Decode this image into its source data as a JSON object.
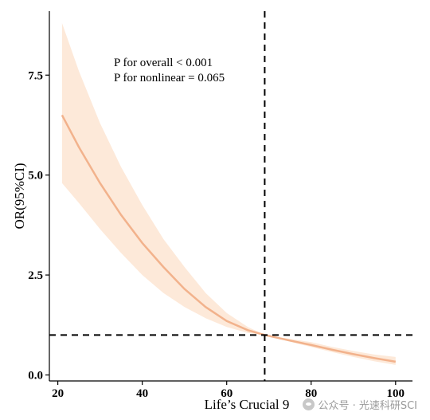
{
  "chart_data": {
    "type": "line",
    "xlabel": "Life’s Crucial 9",
    "ylabel": "OR(95%CI)",
    "xlim": [
      18,
      104
    ],
    "ylim": [
      -0.15,
      9.1
    ],
    "x_ticks": [
      20,
      40,
      60,
      80,
      100
    ],
    "y_ticks": [
      0.0,
      2.5,
      5.0,
      7.5
    ],
    "y_tick_labels": [
      "0.0",
      "2.5",
      "5.0",
      "7.5"
    ],
    "grid": false,
    "annotations": [
      "P for overall < 0.001",
      "P for nonlinear = 0.065"
    ],
    "reference_lines": {
      "vertical_x": 69,
      "horizontal_y": 1.0
    },
    "series": [
      {
        "x": [
          21,
          25,
          30,
          35,
          40,
          45,
          50,
          55,
          60,
          65,
          69,
          75,
          80,
          85,
          90,
          95,
          100
        ],
        "y": [
          6.5,
          5.7,
          4.8,
          4.0,
          3.3,
          2.7,
          2.15,
          1.7,
          1.35,
          1.12,
          1.0,
          0.86,
          0.75,
          0.63,
          0.52,
          0.42,
          0.33
        ],
        "lower": [
          4.8,
          4.3,
          3.65,
          3.05,
          2.5,
          2.05,
          1.7,
          1.42,
          1.2,
          1.05,
          1.0,
          0.83,
          0.7,
          0.57,
          0.45,
          0.34,
          0.25
        ],
        "upper": [
          8.8,
          7.6,
          6.3,
          5.2,
          4.25,
          3.4,
          2.7,
          2.05,
          1.55,
          1.2,
          1.0,
          0.9,
          0.82,
          0.7,
          0.6,
          0.51,
          0.45
        ]
      }
    ],
    "colors": {
      "line": "#f2b28c",
      "band": "#fde9d9"
    }
  },
  "watermark": {
    "text": "公众号 · 光速科研SCI"
  }
}
